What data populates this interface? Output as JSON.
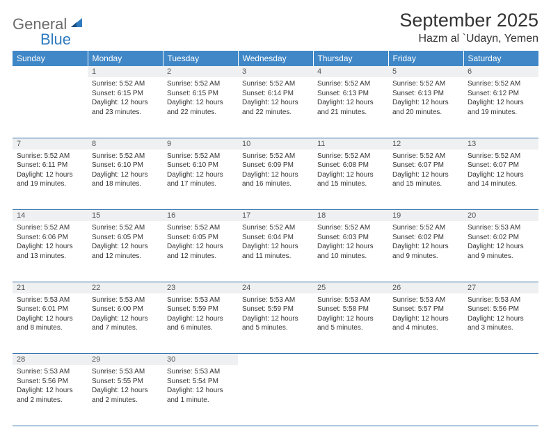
{
  "logo": {
    "general": "General",
    "blue": "Blue"
  },
  "title": "September 2025",
  "location": "Hazm al `Udayn, Yemen",
  "day_headers": [
    "Sunday",
    "Monday",
    "Tuesday",
    "Wednesday",
    "Thursday",
    "Friday",
    "Saturday"
  ],
  "colors": {
    "header_bg": "#3f87c7",
    "header_text": "#ffffff",
    "daynum_bg": "#eef0f2",
    "row_border": "#2f6fa8",
    "logo_gray": "#6b6b6b",
    "logo_blue": "#2f7bbf"
  },
  "weeks": [
    [
      null,
      {
        "n": "1",
        "sr": "5:52 AM",
        "ss": "6:15 PM",
        "dl": "12 hours and 23 minutes."
      },
      {
        "n": "2",
        "sr": "5:52 AM",
        "ss": "6:15 PM",
        "dl": "12 hours and 22 minutes."
      },
      {
        "n": "3",
        "sr": "5:52 AM",
        "ss": "6:14 PM",
        "dl": "12 hours and 22 minutes."
      },
      {
        "n": "4",
        "sr": "5:52 AM",
        "ss": "6:13 PM",
        "dl": "12 hours and 21 minutes."
      },
      {
        "n": "5",
        "sr": "5:52 AM",
        "ss": "6:13 PM",
        "dl": "12 hours and 20 minutes."
      },
      {
        "n": "6",
        "sr": "5:52 AM",
        "ss": "6:12 PM",
        "dl": "12 hours and 19 minutes."
      }
    ],
    [
      {
        "n": "7",
        "sr": "5:52 AM",
        "ss": "6:11 PM",
        "dl": "12 hours and 19 minutes."
      },
      {
        "n": "8",
        "sr": "5:52 AM",
        "ss": "6:10 PM",
        "dl": "12 hours and 18 minutes."
      },
      {
        "n": "9",
        "sr": "5:52 AM",
        "ss": "6:10 PM",
        "dl": "12 hours and 17 minutes."
      },
      {
        "n": "10",
        "sr": "5:52 AM",
        "ss": "6:09 PM",
        "dl": "12 hours and 16 minutes."
      },
      {
        "n": "11",
        "sr": "5:52 AM",
        "ss": "6:08 PM",
        "dl": "12 hours and 15 minutes."
      },
      {
        "n": "12",
        "sr": "5:52 AM",
        "ss": "6:07 PM",
        "dl": "12 hours and 15 minutes."
      },
      {
        "n": "13",
        "sr": "5:52 AM",
        "ss": "6:07 PM",
        "dl": "12 hours and 14 minutes."
      }
    ],
    [
      {
        "n": "14",
        "sr": "5:52 AM",
        "ss": "6:06 PM",
        "dl": "12 hours and 13 minutes."
      },
      {
        "n": "15",
        "sr": "5:52 AM",
        "ss": "6:05 PM",
        "dl": "12 hours and 12 minutes."
      },
      {
        "n": "16",
        "sr": "5:52 AM",
        "ss": "6:05 PM",
        "dl": "12 hours and 12 minutes."
      },
      {
        "n": "17",
        "sr": "5:52 AM",
        "ss": "6:04 PM",
        "dl": "12 hours and 11 minutes."
      },
      {
        "n": "18",
        "sr": "5:52 AM",
        "ss": "6:03 PM",
        "dl": "12 hours and 10 minutes."
      },
      {
        "n": "19",
        "sr": "5:52 AM",
        "ss": "6:02 PM",
        "dl": "12 hours and 9 minutes."
      },
      {
        "n": "20",
        "sr": "5:53 AM",
        "ss": "6:02 PM",
        "dl": "12 hours and 9 minutes."
      }
    ],
    [
      {
        "n": "21",
        "sr": "5:53 AM",
        "ss": "6:01 PM",
        "dl": "12 hours and 8 minutes."
      },
      {
        "n": "22",
        "sr": "5:53 AM",
        "ss": "6:00 PM",
        "dl": "12 hours and 7 minutes."
      },
      {
        "n": "23",
        "sr": "5:53 AM",
        "ss": "5:59 PM",
        "dl": "12 hours and 6 minutes."
      },
      {
        "n": "24",
        "sr": "5:53 AM",
        "ss": "5:59 PM",
        "dl": "12 hours and 5 minutes."
      },
      {
        "n": "25",
        "sr": "5:53 AM",
        "ss": "5:58 PM",
        "dl": "12 hours and 5 minutes."
      },
      {
        "n": "26",
        "sr": "5:53 AM",
        "ss": "5:57 PM",
        "dl": "12 hours and 4 minutes."
      },
      {
        "n": "27",
        "sr": "5:53 AM",
        "ss": "5:56 PM",
        "dl": "12 hours and 3 minutes."
      }
    ],
    [
      {
        "n": "28",
        "sr": "5:53 AM",
        "ss": "5:56 PM",
        "dl": "12 hours and 2 minutes."
      },
      {
        "n": "29",
        "sr": "5:53 AM",
        "ss": "5:55 PM",
        "dl": "12 hours and 2 minutes."
      },
      {
        "n": "30",
        "sr": "5:53 AM",
        "ss": "5:54 PM",
        "dl": "12 hours and 1 minute."
      },
      null,
      null,
      null,
      null
    ]
  ],
  "labels": {
    "sunrise": "Sunrise:",
    "sunset": "Sunset:",
    "daylight": "Daylight:"
  }
}
